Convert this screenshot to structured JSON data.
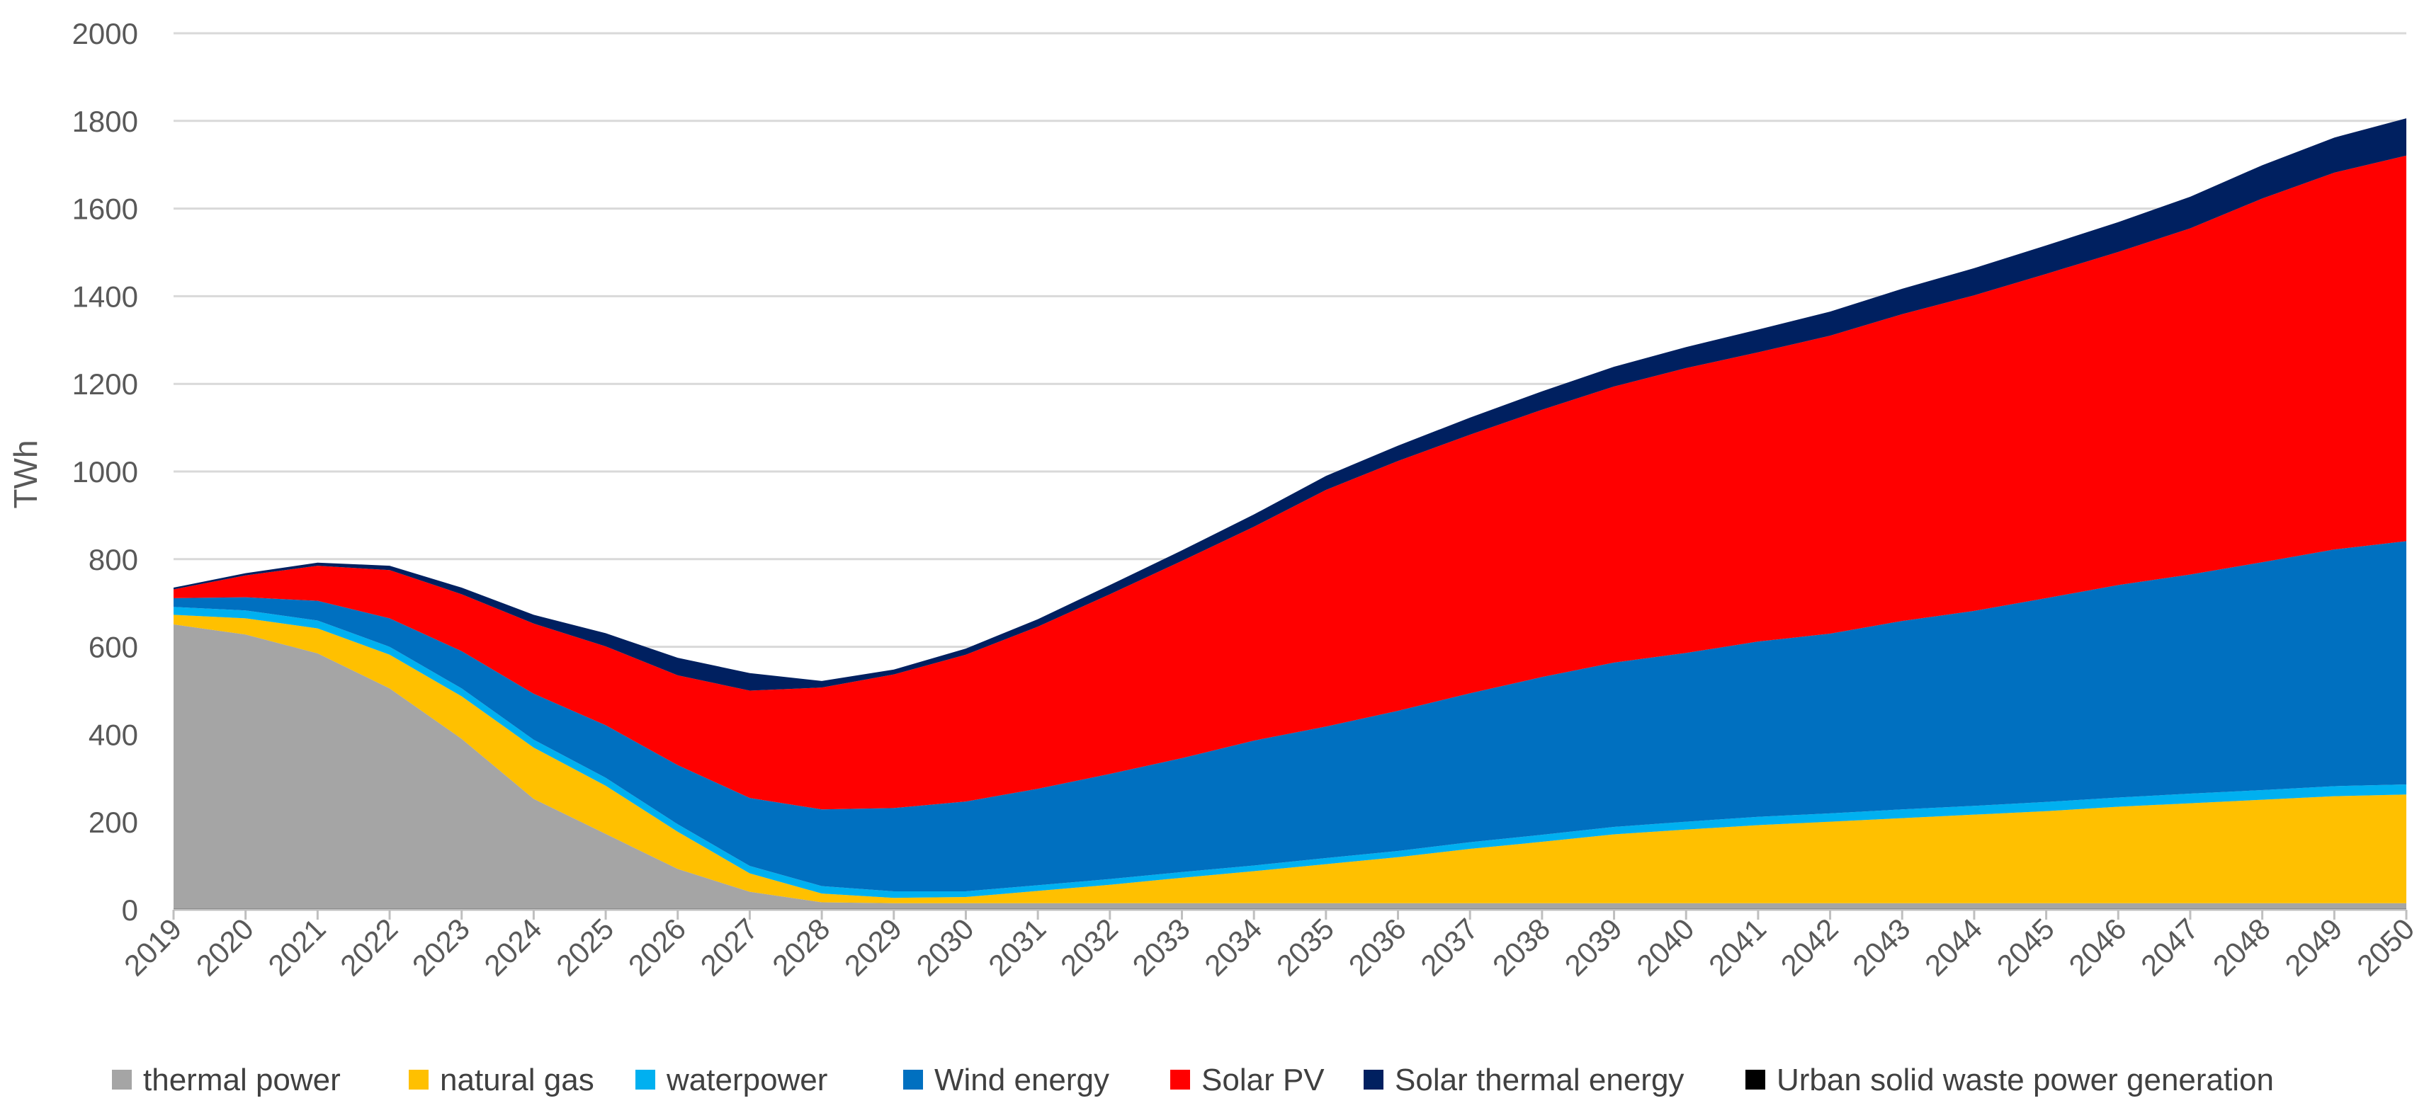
{
  "chart_data": {
    "type": "area",
    "stacked": true,
    "title": "",
    "xlabel": "",
    "ylabel": "TWh",
    "ylim": [
      0,
      2000
    ],
    "yticks": [
      0,
      200,
      400,
      600,
      800,
      1000,
      1200,
      1400,
      1600,
      1800,
      2000
    ],
    "grid": true,
    "legend_position": "bottom",
    "categories": [
      "2019",
      "2020",
      "2021",
      "2022",
      "2023",
      "2024",
      "2025",
      "2026",
      "2027",
      "2028",
      "2029",
      "2030",
      "2031",
      "2032",
      "2033",
      "2034",
      "2035",
      "2036",
      "2037",
      "2038",
      "2039",
      "2040",
      "2041",
      "2042",
      "2043",
      "2044",
      "2045",
      "2046",
      "2047",
      "2048",
      "2049",
      "2050"
    ],
    "series": [
      {
        "name": "Urban solid waste power generation",
        "color": "#000000",
        "values": [
          3,
          3,
          3,
          3,
          3,
          3,
          3,
          3,
          3,
          3,
          3,
          3,
          3,
          3,
          3,
          3,
          3,
          3,
          3,
          3,
          3,
          3,
          3,
          3,
          3,
          3,
          3,
          3,
          3,
          3,
          3,
          3
        ]
      },
      {
        "name": "thermal power",
        "color": "#A5A5A5",
        "values": [
          648,
          625,
          582,
          502,
          387,
          250,
          170,
          90,
          38,
          14,
          12,
          12,
          12,
          12,
          12,
          12,
          12,
          12,
          12,
          12,
          12,
          12,
          12,
          12,
          12,
          12,
          12,
          12,
          12,
          12,
          12,
          12
        ]
      },
      {
        "name": "natural gas",
        "color": "#FFC000",
        "values": [
          22,
          37,
          57,
          77,
          97,
          117,
          110,
          85,
          42,
          20,
          12,
          14,
          28,
          42,
          58,
          73,
          89,
          105,
          124,
          140,
          157,
          168,
          178,
          186,
          194,
          202,
          210,
          220,
          228,
          236,
          244,
          248
        ]
      },
      {
        "name": "waterpower",
        "color": "#00B0F0",
        "values": [
          18,
          18,
          18,
          18,
          18,
          18,
          18,
          17,
          17,
          17,
          15,
          13,
          13,
          13,
          13,
          13,
          14,
          14,
          15,
          16,
          17,
          18,
          19,
          19,
          20,
          20,
          21,
          21,
          22,
          22,
          23,
          23
        ]
      },
      {
        "name": "Wind energy",
        "color": "#0070C0",
        "values": [
          20,
          30,
          45,
          65,
          85,
          105,
          120,
          135,
          155,
          175,
          190,
          205,
          220,
          240,
          260,
          285,
          300,
          320,
          340,
          360,
          375,
          385,
          400,
          410,
          430,
          445,
          465,
          485,
          500,
          520,
          540,
          555
        ]
      },
      {
        "name": "Solar PV",
        "color": "#FF0000",
        "values": [
          20,
          50,
          80,
          110,
          130,
          160,
          180,
          205,
          245,
          278,
          305,
          335,
          370,
          410,
          450,
          488,
          540,
          570,
          590,
          610,
          630,
          650,
          660,
          680,
          700,
          720,
          740,
          760,
          790,
          830,
          860,
          880
        ]
      },
      {
        "name": "Solar thermal energy",
        "color": "#002060",
        "values": [
          4,
          5,
          7,
          10,
          15,
          20,
          30,
          40,
          40,
          15,
          11,
          14,
          17,
          21,
          24,
          28,
          32,
          35,
          39,
          42,
          45,
          48,
          52,
          55,
          58,
          62,
          65,
          68,
          72,
          76,
          80,
          85
        ]
      }
    ],
    "legend": [
      "thermal power",
      "natural gas",
      "waterpower",
      "Wind energy",
      "Solar PV",
      "Solar thermal energy",
      "Urban solid waste power generation"
    ]
  }
}
